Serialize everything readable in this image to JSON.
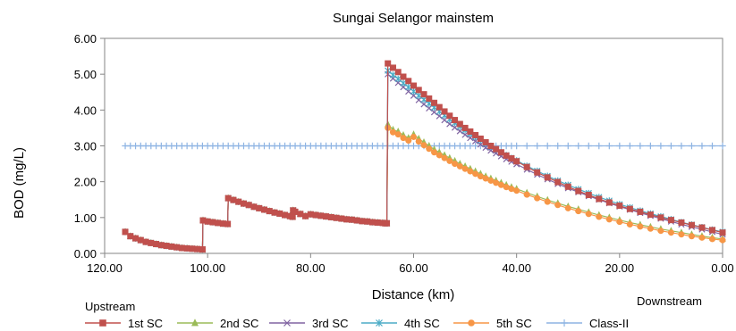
{
  "chart_data": {
    "type": "line",
    "title": "Sungai Selangor mainstem",
    "xlabel": "Distance (km)",
    "ylabel": "BOD (mg/L)",
    "xlim": [
      120,
      0
    ],
    "ylim": [
      0,
      6
    ],
    "x_reversed": true,
    "x_ticks": [
      "120.00",
      "100.00",
      "80.00",
      "60.00",
      "40.00",
      "20.00",
      "0.00"
    ],
    "y_ticks": [
      "0.00",
      "1.00",
      "2.00",
      "3.00",
      "4.00",
      "5.00",
      "6.00"
    ],
    "grid": false,
    "legend_position": "bottom",
    "annotations": {
      "left": "Upstream",
      "right": "Downstream"
    },
    "series": [
      {
        "name": "1st SC",
        "color": "#C0504D",
        "marker": "square",
        "x": [
          116,
          115,
          114,
          113,
          112,
          111,
          110,
          109,
          108,
          107,
          106,
          105,
          104,
          103,
          102,
          101,
          100.9,
          100,
          99,
          98,
          97,
          96.1,
          96,
          95,
          94,
          93,
          92,
          91,
          90,
          89,
          88,
          87,
          86,
          85,
          84,
          83.5,
          83.4,
          83,
          82,
          81,
          80,
          79,
          78,
          77,
          76,
          75,
          74,
          73,
          72,
          71,
          70,
          69,
          68,
          67,
          66,
          65.5,
          65.2,
          65,
          64,
          63,
          62,
          61,
          60,
          59,
          58,
          57,
          56,
          55,
          54,
          53,
          52,
          51,
          50,
          49,
          48,
          47,
          46,
          45,
          44,
          43,
          42,
          41,
          40,
          38,
          36,
          34,
          32,
          30,
          28,
          26,
          24,
          22,
          20,
          18,
          16,
          14,
          12,
          10,
          8,
          6,
          4,
          2,
          0
        ],
        "y": [
          0.6,
          0.48,
          0.42,
          0.37,
          0.32,
          0.29,
          0.26,
          0.23,
          0.21,
          0.19,
          0.17,
          0.15,
          0.14,
          0.13,
          0.12,
          0.11,
          0.92,
          0.89,
          0.87,
          0.85,
          0.83,
          0.82,
          1.54,
          1.49,
          1.44,
          1.39,
          1.35,
          1.3,
          1.26,
          1.22,
          1.18,
          1.14,
          1.11,
          1.07,
          1.04,
          1.02,
          1.2,
          1.16,
          1.1,
          1.04,
          1.09,
          1.07,
          1.05,
          1.03,
          1.01,
          0.99,
          0.97,
          0.95,
          0.94,
          0.92,
          0.9,
          0.89,
          0.87,
          0.86,
          0.85,
          0.84,
          0.84,
          5.3,
          5.18,
          5.06,
          4.93,
          4.81,
          4.68,
          4.56,
          4.44,
          4.32,
          4.2,
          4.08,
          3.96,
          3.84,
          3.72,
          3.61,
          3.5,
          3.4,
          3.3,
          3.2,
          3.1,
          3.0,
          2.91,
          2.82,
          2.73,
          2.65,
          2.57,
          2.41,
          2.26,
          2.12,
          1.99,
          1.86,
          1.74,
          1.63,
          1.52,
          1.42,
          1.33,
          1.24,
          1.16,
          1.08,
          1.0,
          0.93,
          0.86,
          0.79,
          0.72,
          0.65,
          0.58
        ]
      },
      {
        "name": "2nd SC",
        "color": "#9BBB59",
        "marker": "triangle",
        "x": [
          116,
          115,
          114,
          113,
          112,
          111,
          110,
          109,
          108,
          107,
          106,
          105,
          104,
          103,
          102,
          101,
          100.9,
          100,
          99,
          98,
          97,
          96.1,
          96,
          95,
          94,
          93,
          92,
          91,
          90,
          89,
          88,
          87,
          86,
          85,
          84,
          83.5,
          83.4,
          83,
          82,
          81,
          80,
          79,
          78,
          77,
          76,
          75,
          74,
          73,
          72,
          71,
          70,
          69,
          68,
          67,
          66,
          65.5,
          65.2,
          65,
          64,
          63,
          62,
          61,
          60,
          59,
          58,
          57,
          56,
          55,
          54,
          53,
          52,
          51,
          50,
          49,
          48,
          47,
          46,
          45,
          44,
          43,
          42,
          41,
          40,
          38,
          36,
          34,
          32,
          30,
          28,
          26,
          24,
          22,
          20,
          18,
          16,
          14,
          12,
          10,
          8,
          6,
          4,
          2,
          0
        ],
        "y": [
          0.6,
          0.48,
          0.42,
          0.37,
          0.32,
          0.29,
          0.26,
          0.23,
          0.21,
          0.19,
          0.17,
          0.15,
          0.14,
          0.13,
          0.12,
          0.11,
          0.92,
          0.89,
          0.87,
          0.85,
          0.83,
          0.82,
          1.54,
          1.49,
          1.44,
          1.39,
          1.35,
          1.3,
          1.26,
          1.22,
          1.18,
          1.14,
          1.11,
          1.07,
          1.04,
          1.02,
          1.2,
          1.16,
          1.1,
          1.04,
          1.09,
          1.07,
          1.05,
          1.03,
          1.01,
          0.99,
          0.97,
          0.95,
          0.94,
          0.92,
          0.9,
          0.89,
          0.87,
          0.86,
          0.85,
          0.84,
          0.84,
          3.6,
          3.45,
          3.4,
          3.3,
          3.22,
          3.32,
          3.2,
          3.1,
          3.0,
          2.9,
          2.82,
          2.74,
          2.66,
          2.58,
          2.5,
          2.43,
          2.36,
          2.29,
          2.22,
          2.15,
          2.09,
          2.03,
          1.97,
          1.91,
          1.85,
          1.8,
          1.69,
          1.59,
          1.49,
          1.4,
          1.31,
          1.23,
          1.15,
          1.07,
          1.0,
          0.93,
          0.86,
          0.8,
          0.74,
          0.68,
          0.63,
          0.58,
          0.53,
          0.48,
          0.44,
          0.4
        ]
      },
      {
        "name": "3rd SC",
        "color": "#8064A2",
        "marker": "x",
        "x": [
          116,
          115,
          114,
          113,
          112,
          111,
          110,
          109,
          108,
          107,
          106,
          105,
          104,
          103,
          102,
          101,
          100.9,
          100,
          99,
          98,
          97,
          96.1,
          96,
          95,
          94,
          93,
          92,
          91,
          90,
          89,
          88,
          87,
          86,
          85,
          84,
          83.5,
          83.4,
          83,
          82,
          81,
          80,
          79,
          78,
          77,
          76,
          75,
          74,
          73,
          72,
          71,
          70,
          69,
          68,
          67,
          66,
          65.5,
          65.2,
          65,
          64,
          63,
          62,
          61,
          60,
          59,
          58,
          57,
          56,
          55,
          54,
          53,
          52,
          51,
          50,
          49,
          48,
          47,
          46,
          45,
          44,
          43,
          42,
          41,
          40,
          38,
          36,
          34,
          32,
          30,
          28,
          26,
          24,
          22,
          20,
          18,
          16,
          14,
          12,
          10,
          8,
          6,
          4,
          2,
          0
        ],
        "y": [
          0.6,
          0.48,
          0.42,
          0.37,
          0.32,
          0.29,
          0.26,
          0.23,
          0.21,
          0.19,
          0.17,
          0.15,
          0.14,
          0.13,
          0.12,
          0.11,
          0.92,
          0.89,
          0.87,
          0.85,
          0.83,
          0.82,
          1.54,
          1.49,
          1.44,
          1.39,
          1.35,
          1.3,
          1.26,
          1.22,
          1.18,
          1.14,
          1.11,
          1.07,
          1.04,
          1.02,
          1.2,
          1.16,
          1.1,
          1.04,
          1.09,
          1.07,
          1.05,
          1.03,
          1.01,
          0.99,
          0.97,
          0.95,
          0.94,
          0.92,
          0.9,
          0.89,
          0.87,
          0.86,
          0.85,
          0.84,
          0.84,
          5.0,
          4.88,
          4.76,
          4.64,
          4.52,
          4.4,
          4.28,
          4.16,
          4.05,
          3.94,
          3.83,
          3.72,
          3.61,
          3.51,
          3.41,
          3.31,
          3.22,
          3.13,
          3.04,
          2.95,
          2.87,
          2.79,
          2.71,
          2.63,
          2.56,
          2.49,
          2.34,
          2.2,
          2.07,
          1.94,
          1.82,
          1.71,
          1.6,
          1.5,
          1.4,
          1.31,
          1.22,
          1.13,
          1.05,
          0.97,
          0.89,
          0.81,
          0.74,
          0.67,
          0.6,
          0.53
        ]
      },
      {
        "name": "4th SC",
        "color": "#4BACC6",
        "marker": "asterisk",
        "x": [
          116,
          115,
          114,
          113,
          112,
          111,
          110,
          109,
          108,
          107,
          106,
          105,
          104,
          103,
          102,
          101,
          100.9,
          100,
          99,
          98,
          97,
          96.1,
          96,
          95,
          94,
          93,
          92,
          91,
          90,
          89,
          88,
          87,
          86,
          85,
          84,
          83.5,
          83.4,
          83,
          82,
          81,
          80,
          79,
          78,
          77,
          76,
          75,
          74,
          73,
          72,
          71,
          70,
          69,
          68,
          67,
          66,
          65.5,
          65.2,
          65,
          64,
          63,
          62,
          61,
          60,
          59,
          58,
          57,
          56,
          55,
          54,
          53,
          52,
          51,
          50,
          49,
          48,
          47,
          46,
          45,
          44,
          43,
          42,
          41,
          40,
          38,
          36,
          34,
          32,
          30,
          28,
          26,
          24,
          22,
          20,
          18,
          16,
          14,
          12,
          10,
          8,
          6,
          4,
          2,
          0
        ],
        "y": [
          0.6,
          0.48,
          0.42,
          0.37,
          0.32,
          0.29,
          0.26,
          0.23,
          0.21,
          0.19,
          0.17,
          0.15,
          0.14,
          0.13,
          0.12,
          0.11,
          0.92,
          0.89,
          0.87,
          0.85,
          0.83,
          0.82,
          1.54,
          1.49,
          1.44,
          1.39,
          1.35,
          1.3,
          1.26,
          1.22,
          1.18,
          1.14,
          1.11,
          1.07,
          1.04,
          1.02,
          1.2,
          1.16,
          1.1,
          1.04,
          1.09,
          1.07,
          1.05,
          1.03,
          1.01,
          0.99,
          0.97,
          0.95,
          0.94,
          0.92,
          0.9,
          0.89,
          0.87,
          0.86,
          0.85,
          0.84,
          0.84,
          5.1,
          4.98,
          4.87,
          4.75,
          4.64,
          4.52,
          4.4,
          4.29,
          4.18,
          4.07,
          3.96,
          3.85,
          3.74,
          3.64,
          3.54,
          3.44,
          3.34,
          3.25,
          3.16,
          3.07,
          2.98,
          2.9,
          2.82,
          2.74,
          2.66,
          2.59,
          2.44,
          2.3,
          2.16,
          2.03,
          1.91,
          1.79,
          1.68,
          1.57,
          1.47,
          1.37,
          1.28,
          1.19,
          1.11,
          1.03,
          0.95,
          0.87,
          0.8,
          0.73,
          0.66,
          0.6
        ]
      },
      {
        "name": "5th SC",
        "color": "#F79646",
        "marker": "circle",
        "x": [
          116,
          115,
          114,
          113,
          112,
          111,
          110,
          109,
          108,
          107,
          106,
          105,
          104,
          103,
          102,
          101,
          100.9,
          100,
          99,
          98,
          97,
          96.1,
          96,
          95,
          94,
          93,
          92,
          91,
          90,
          89,
          88,
          87,
          86,
          85,
          84,
          83.5,
          83.4,
          83,
          82,
          81,
          80,
          79,
          78,
          77,
          76,
          75,
          74,
          73,
          72,
          71,
          70,
          69,
          68,
          67,
          66,
          65.5,
          65.2,
          65,
          64,
          63,
          62,
          61,
          60,
          59,
          58,
          57,
          56,
          55,
          54,
          53,
          52,
          51,
          50,
          49,
          48,
          47,
          46,
          45,
          44,
          43,
          42,
          41,
          40,
          38,
          36,
          34,
          32,
          30,
          28,
          26,
          24,
          22,
          20,
          18,
          16,
          14,
          12,
          10,
          8,
          6,
          4,
          2,
          0
        ],
        "y": [
          0.6,
          0.48,
          0.42,
          0.37,
          0.32,
          0.29,
          0.26,
          0.23,
          0.21,
          0.19,
          0.17,
          0.15,
          0.14,
          0.13,
          0.12,
          0.11,
          0.92,
          0.89,
          0.87,
          0.85,
          0.83,
          0.82,
          1.54,
          1.49,
          1.44,
          1.39,
          1.35,
          1.3,
          1.26,
          1.22,
          1.18,
          1.14,
          1.11,
          1.07,
          1.04,
          1.02,
          1.2,
          1.16,
          1.1,
          1.04,
          1.09,
          1.07,
          1.05,
          1.03,
          1.01,
          0.99,
          0.97,
          0.95,
          0.94,
          0.92,
          0.9,
          0.89,
          0.87,
          0.86,
          0.85,
          0.84,
          0.84,
          3.5,
          3.38,
          3.32,
          3.22,
          3.15,
          3.25,
          3.12,
          3.02,
          2.92,
          2.82,
          2.74,
          2.66,
          2.58,
          2.5,
          2.43,
          2.36,
          2.29,
          2.22,
          2.15,
          2.09,
          2.03,
          1.97,
          1.91,
          1.85,
          1.8,
          1.75,
          1.64,
          1.54,
          1.44,
          1.35,
          1.26,
          1.18,
          1.1,
          1.02,
          0.95,
          0.88,
          0.81,
          0.75,
          0.69,
          0.63,
          0.58,
          0.53,
          0.48,
          0.44,
          0.4,
          0.37
        ]
      },
      {
        "name": "Class-II",
        "color": "#8EB4E3",
        "marker": "plus",
        "x": [
          116,
          115,
          114,
          113,
          112,
          111,
          110,
          109,
          108,
          107,
          106,
          105,
          104,
          103,
          102,
          101,
          100,
          99,
          98,
          97,
          96,
          95,
          94,
          93,
          92,
          91,
          90,
          89,
          88,
          87,
          86,
          85,
          84,
          83,
          82,
          81,
          80,
          79,
          78,
          77,
          76,
          75,
          74,
          73,
          72,
          71,
          70,
          69,
          68,
          67,
          66,
          65,
          64,
          63,
          62,
          61,
          60,
          59,
          58,
          57,
          56,
          55,
          54,
          53,
          52,
          51,
          50,
          49,
          48,
          47,
          46,
          45,
          44,
          43,
          42,
          41,
          40,
          38,
          36,
          34,
          32,
          30,
          28,
          26,
          24,
          22,
          20,
          18,
          16,
          14,
          12,
          10,
          8,
          6,
          4,
          2,
          0
        ],
        "y": [
          3,
          3,
          3,
          3,
          3,
          3,
          3,
          3,
          3,
          3,
          3,
          3,
          3,
          3,
          3,
          3,
          3,
          3,
          3,
          3,
          3,
          3,
          3,
          3,
          3,
          3,
          3,
          3,
          3,
          3,
          3,
          3,
          3,
          3,
          3,
          3,
          3,
          3,
          3,
          3,
          3,
          3,
          3,
          3,
          3,
          3,
          3,
          3,
          3,
          3,
          3,
          3,
          3,
          3,
          3,
          3,
          3,
          3,
          3,
          3,
          3,
          3,
          3,
          3,
          3,
          3,
          3,
          3,
          3,
          3,
          3,
          3,
          3,
          3,
          3,
          3,
          3,
          3,
          3,
          3,
          3,
          3,
          3,
          3,
          3,
          3,
          3,
          3,
          3,
          3,
          3,
          3,
          3,
          3,
          3,
          3,
          3
        ]
      }
    ]
  }
}
